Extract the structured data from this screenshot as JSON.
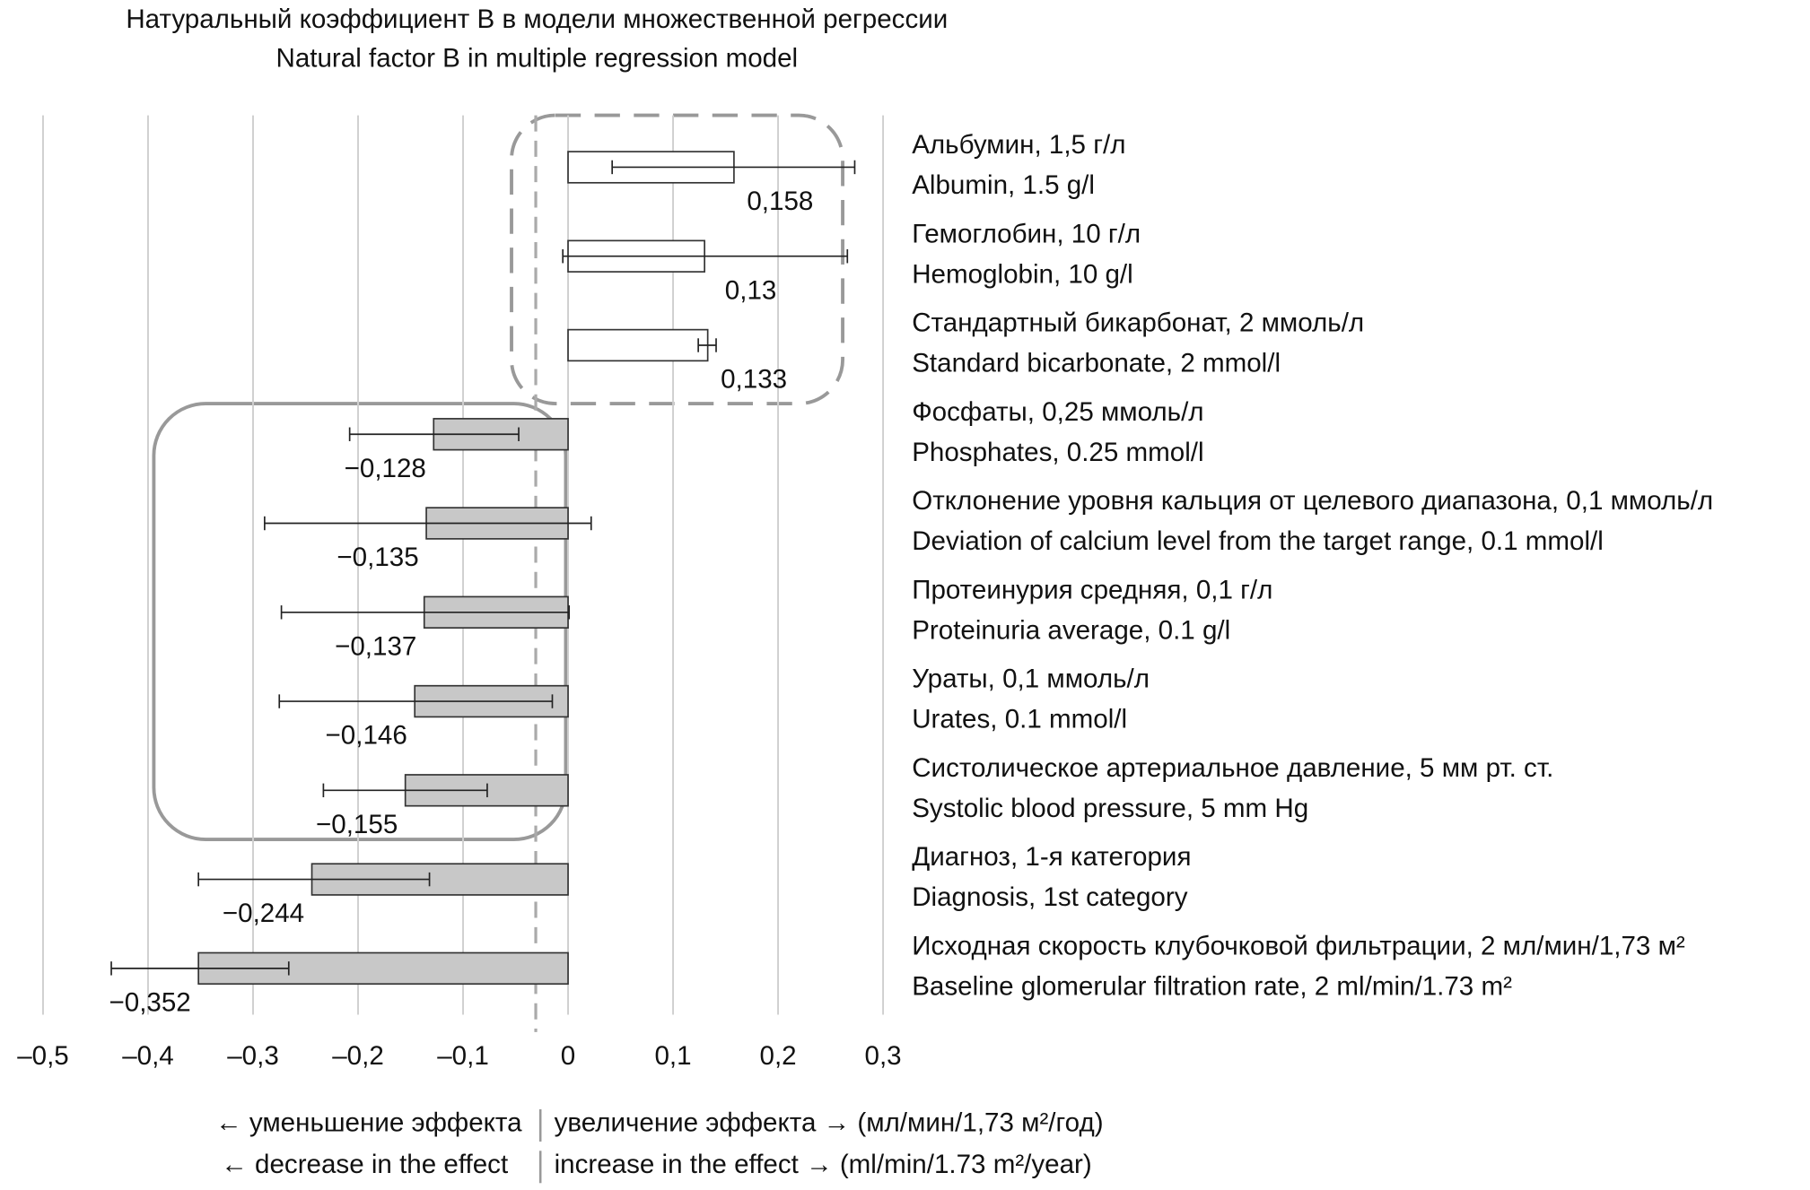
{
  "chart_data": {
    "type": "hbar",
    "title": "Натуральный коэффициент B в модели множественной регрессии",
    "subtitle": "Natural factor B in multiple regression model",
    "categories": [
      [
        "Альбумин, 1,5 г/л",
        "Albumin, 1.5 g/l"
      ],
      [
        "Гемоглобин, 10 г/л",
        "Hemoglobin, 10 g/l"
      ],
      [
        "Стандартный бикарбонат, 2 ммоль/л",
        "Standard bicarbonate, 2 mmol/l"
      ],
      [
        "Фосфаты, 0,25 ммоль/л",
        "Phosphates, 0.25 mmol/l"
      ],
      [
        "Отклонение уровня кальция от целевого диапазона,  0,1 ммоль/л",
        "Deviation of calcium level from the target range, 0.1 mmol/l"
      ],
      [
        "Протеинурия средняя, 0,1 г/л",
        "Proteinuria average, 0.1 g/l"
      ],
      [
        "Ураты, 0,1 ммоль/л",
        "Urates, 0.1 mmol/l"
      ],
      [
        "Систолическое артериальное давление, 5 мм рт. ст.",
        "Systolic blood pressure, 5 mm Hg"
      ],
      [
        "Диагноз, 1-я категория",
        "Diagnosis, 1st category"
      ],
      [
        "Исходная скорость клубочковой фильтрации, 2 мл/мин/1,73 м²",
        "Baseline glomerular filtration rate, 2 ml/min/1.73 m²"
      ]
    ],
    "values": [
      0.158,
      0.13,
      0.133,
      -0.128,
      -0.135,
      -0.137,
      -0.146,
      -0.155,
      -0.244,
      -0.352
    ],
    "value_labels": [
      "0,158",
      "0,13",
      "0,133",
      "−0,128",
      "−0,135",
      "−0,137",
      "−0,146",
      "−0,155",
      "−0,244",
      "−0,352"
    ],
    "ci_low": [
      0.042,
      -0.005,
      0.124,
      -0.208,
      -0.289,
      -0.273,
      -0.275,
      -0.233,
      -0.352,
      -0.435
    ],
    "ci_high": [
      0.273,
      0.266,
      0.141,
      -0.047,
      0.022,
      0.001,
      -0.015,
      -0.077,
      -0.132,
      -0.266
    ],
    "colors": [
      "#ffffff",
      "#ffffff",
      "#ffffff",
      "#c8c8c8",
      "#c8c8c8",
      "#c8c8c8",
      "#c8c8c8",
      "#c8c8c8",
      "#c8c8c8",
      "#c8c8c8"
    ],
    "xlim": [
      -0.5,
      0.3
    ],
    "xticks": [
      {
        "value": -0.5,
        "label": "–0,5"
      },
      {
        "value": -0.4,
        "label": "–0,4"
      },
      {
        "value": -0.3,
        "label": "–0,3"
      },
      {
        "value": -0.2,
        "label": "–0,2"
      },
      {
        "value": -0.1,
        "label": "–0,1"
      },
      0,
      {
        "value": 0.1,
        "label": "0,1"
      },
      {
        "value": 0.2,
        "label": "0,2"
      },
      {
        "value": 0.3,
        "label": "0,3"
      }
    ],
    "grid": true,
    "xlabel_left": [
      "← уменьшение эффекта",
      "← decrease in the effect"
    ],
    "xlabel_right": [
      "увеличение эффекта → (мл/мин/1,73 м²/год)",
      "increase in the effect → (ml/min/1.73 m²/year)"
    ]
  }
}
